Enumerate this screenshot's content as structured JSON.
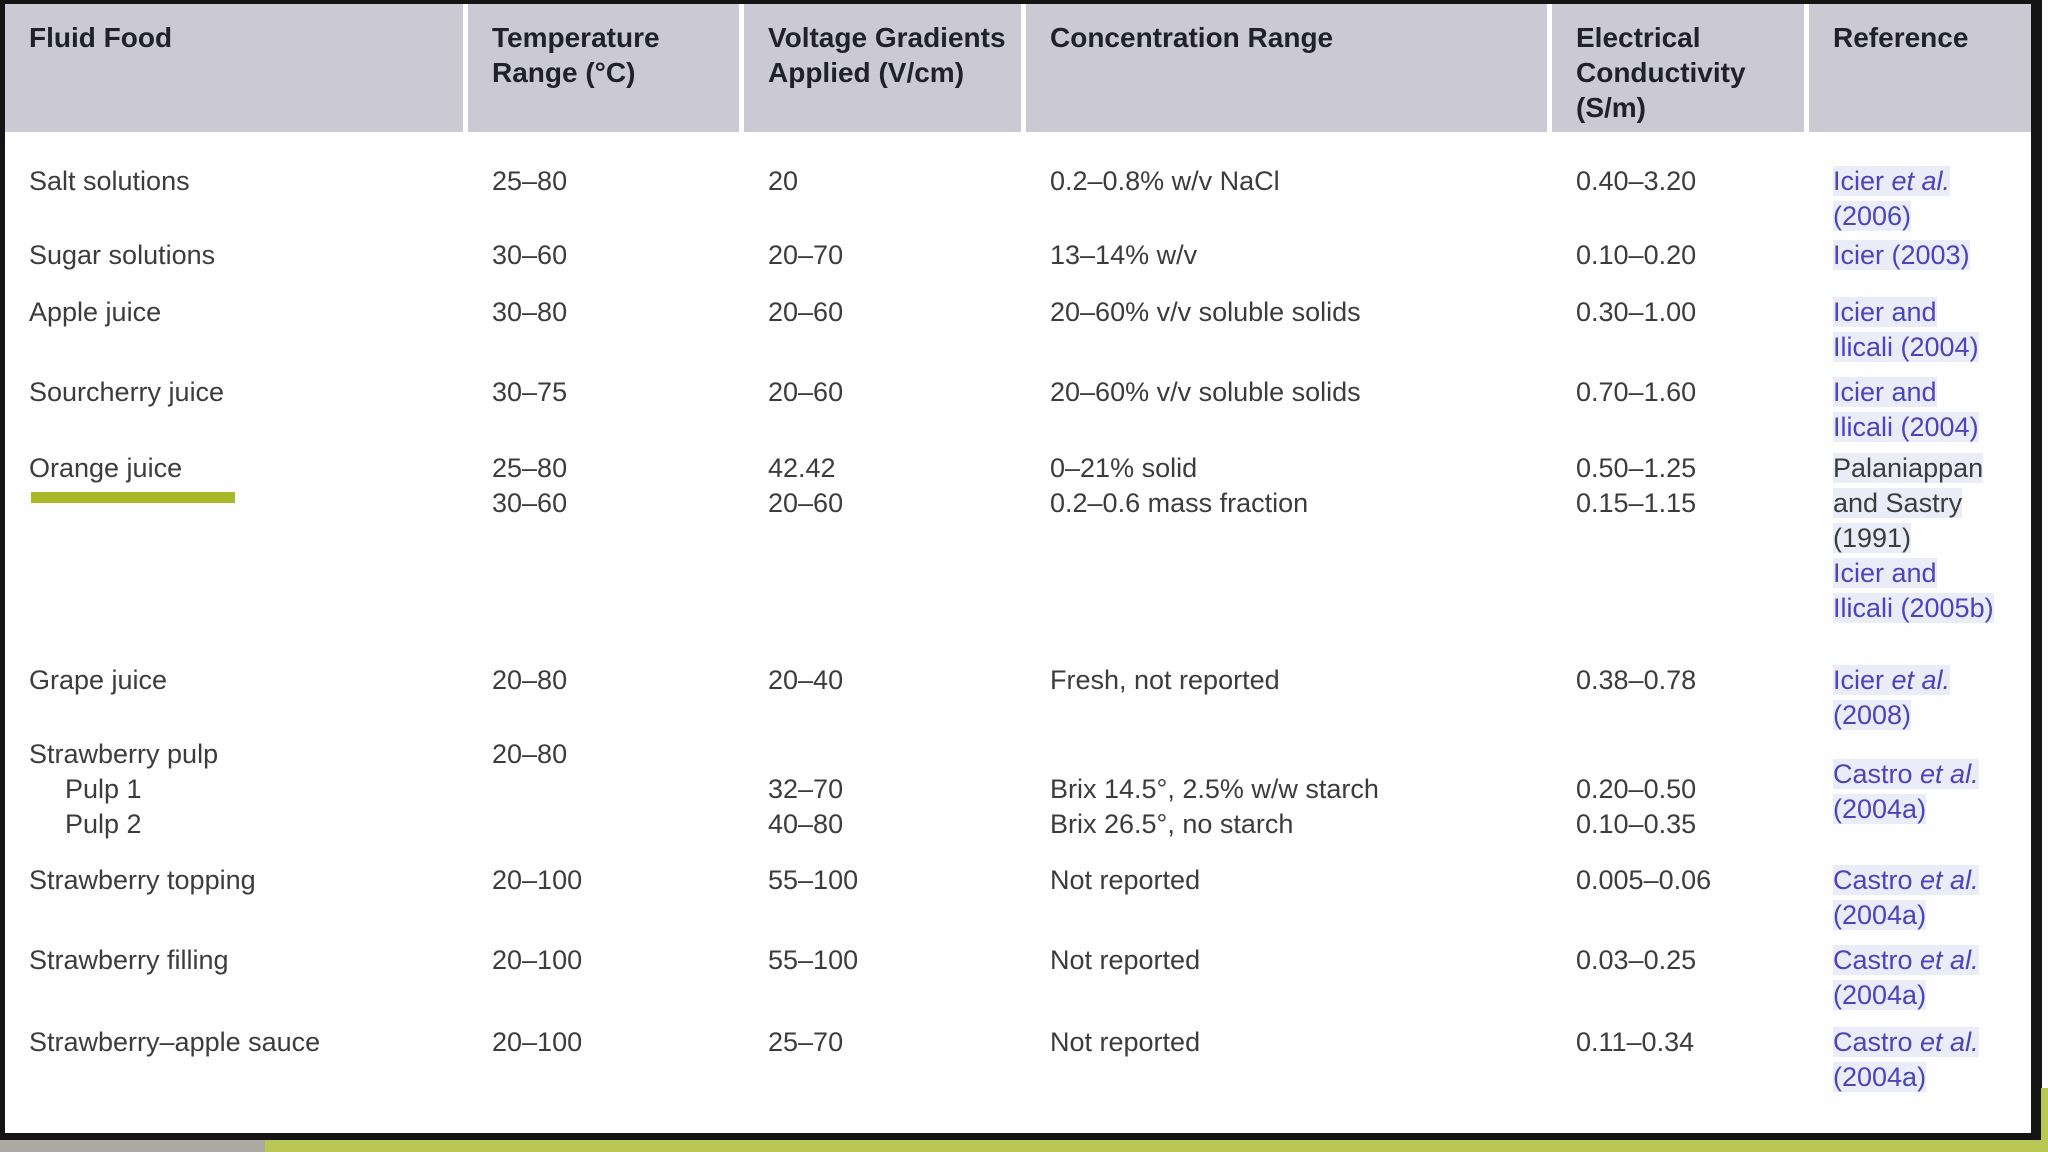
{
  "colors": {
    "header_bg": "#cac9d4",
    "reference_blue": "#4b44ba",
    "highlight_green": "#a8b829",
    "strip_green": "#b9c855",
    "strip_gray": "#abaaa2"
  },
  "annotations": {
    "underlined_food": "Orange juice",
    "underline_color": "#a8b829"
  },
  "table": {
    "columns": [
      "Fluid Food",
      "Temperature Range (°C)",
      "Voltage Gradients Applied (V/cm)",
      "Concentration Range",
      "Electrical Conductivity (S/m)",
      "Reference"
    ],
    "rows": [
      {
        "food": [
          "Salt solutions"
        ],
        "temperature": [
          "25–80"
        ],
        "voltage": [
          "20"
        ],
        "concentration": [
          "0.2–0.8% w/v NaCl"
        ],
        "conductivity": [
          "0.40–3.20"
        ],
        "reference": [
          {
            "segments": [
              {
                "t": "Icier "
              },
              {
                "t": "et al.",
                "italic": true
              }
            ]
          },
          {
            "segments": [
              {
                "t": "(2006)"
              }
            ]
          }
        ]
      },
      {
        "food": [
          "Sugar solutions"
        ],
        "temperature": [
          "30–60"
        ],
        "voltage": [
          "20–70"
        ],
        "concentration": [
          "13–14% w/v"
        ],
        "conductivity": [
          "0.10–0.20"
        ],
        "reference": [
          {
            "segments": [
              {
                "t": "Icier (2003)"
              }
            ]
          }
        ]
      },
      {
        "food": [
          "Apple juice"
        ],
        "temperature": [
          "30–80"
        ],
        "voltage": [
          "20–60"
        ],
        "concentration": [
          "20–60% v/v soluble solids"
        ],
        "conductivity": [
          "0.30–1.00"
        ],
        "reference": [
          {
            "segments": [
              {
                "t": "Icier and"
              }
            ]
          },
          {
            "segments": [
              {
                "t": "Ilicali (2004)"
              }
            ]
          }
        ]
      },
      {
        "food": [
          "Sourcherry juice"
        ],
        "temperature": [
          "30–75"
        ],
        "voltage": [
          "20–60"
        ],
        "concentration": [
          "20–60% v/v soluble solids"
        ],
        "conductivity": [
          "0.70–1.60"
        ],
        "reference": [
          {
            "segments": [
              {
                "t": "Icier and"
              }
            ]
          },
          {
            "segments": [
              {
                "t": "Ilicali (2004)"
              }
            ]
          }
        ]
      },
      {
        "food": [
          {
            "t": "Orange juice",
            "underline": true
          }
        ],
        "temperature": [
          "25–80",
          "30–60"
        ],
        "voltage": [
          "42.42",
          "20–60"
        ],
        "concentration": [
          "0–21% solid",
          "0.2–0.6 mass fraction"
        ],
        "conductivity": [
          "0.50–1.25",
          "0.15–1.15"
        ],
        "reference": [
          {
            "dark": true,
            "segments": [
              {
                "t": "Palaniappan"
              }
            ]
          },
          {
            "dark": true,
            "segments": [
              {
                "t": "and Sastry"
              }
            ]
          },
          {
            "dark": true,
            "segments": [
              {
                "t": "(1991)"
              }
            ]
          },
          {
            "segments": [
              {
                "t": "Icier and"
              }
            ]
          },
          {
            "segments": [
              {
                "t": "Ilicali (2005b)"
              }
            ]
          }
        ]
      },
      {
        "food": [
          "Grape juice"
        ],
        "temperature": [
          "20–80"
        ],
        "voltage": [
          "20–40"
        ],
        "concentration": [
          "Fresh, not reported"
        ],
        "conductivity": [
          "0.38–0.78"
        ],
        "reference": [
          {
            "segments": [
              {
                "t": "Icier "
              },
              {
                "t": "et al.",
                "italic": true
              }
            ]
          },
          {
            "segments": [
              {
                "t": "(2008)"
              }
            ]
          }
        ]
      },
      {
        "ref_gap": true,
        "food": [
          "Strawberry pulp",
          {
            "t": "Pulp 1",
            "indent": true
          },
          {
            "t": "Pulp 2",
            "indent": true
          }
        ],
        "temperature": [
          "20–80"
        ],
        "voltage": [
          "",
          "32–70",
          "40–80"
        ],
        "concentration": [
          "",
          "Brix 14.5°, 2.5% w/w starch",
          "Brix 26.5°, no starch"
        ],
        "conductivity": [
          "",
          "0.20–0.50",
          "0.10–0.35"
        ],
        "reference": [
          {
            "segments": [
              {
                "t": "Castro "
              },
              {
                "t": "et al.",
                "italic": true
              }
            ]
          },
          {
            "segments": [
              {
                "t": "(2004a)"
              }
            ]
          }
        ]
      },
      {
        "food": [
          "Strawberry topping"
        ],
        "temperature": [
          "20–100"
        ],
        "voltage": [
          "55–100"
        ],
        "concentration": [
          "Not reported"
        ],
        "conductivity": [
          "0.005–0.06"
        ],
        "reference": [
          {
            "segments": [
              {
                "t": "Castro "
              },
              {
                "t": "et al.",
                "italic": true
              }
            ]
          },
          {
            "segments": [
              {
                "t": "(2004a)"
              }
            ]
          }
        ]
      },
      {
        "food": [
          "Strawberry filling"
        ],
        "temperature": [
          "20–100"
        ],
        "voltage": [
          "55–100"
        ],
        "concentration": [
          "Not reported"
        ],
        "conductivity": [
          "0.03–0.25"
        ],
        "reference": [
          {
            "segments": [
              {
                "t": "Castro "
              },
              {
                "t": "et al.",
                "italic": true
              }
            ]
          },
          {
            "segments": [
              {
                "t": "(2004a)"
              }
            ]
          }
        ]
      },
      {
        "food": [
          "Strawberry–apple sauce"
        ],
        "temperature": [
          "20–100"
        ],
        "voltage": [
          "25–70"
        ],
        "concentration": [
          "Not reported"
        ],
        "conductivity": [
          "0.11–0.34"
        ],
        "reference": [
          {
            "segments": [
              {
                "t": "Castro "
              },
              {
                "t": "et al.",
                "italic": true
              }
            ]
          },
          {
            "segments": [
              {
                "t": "(2004a)"
              }
            ]
          }
        ]
      }
    ]
  }
}
